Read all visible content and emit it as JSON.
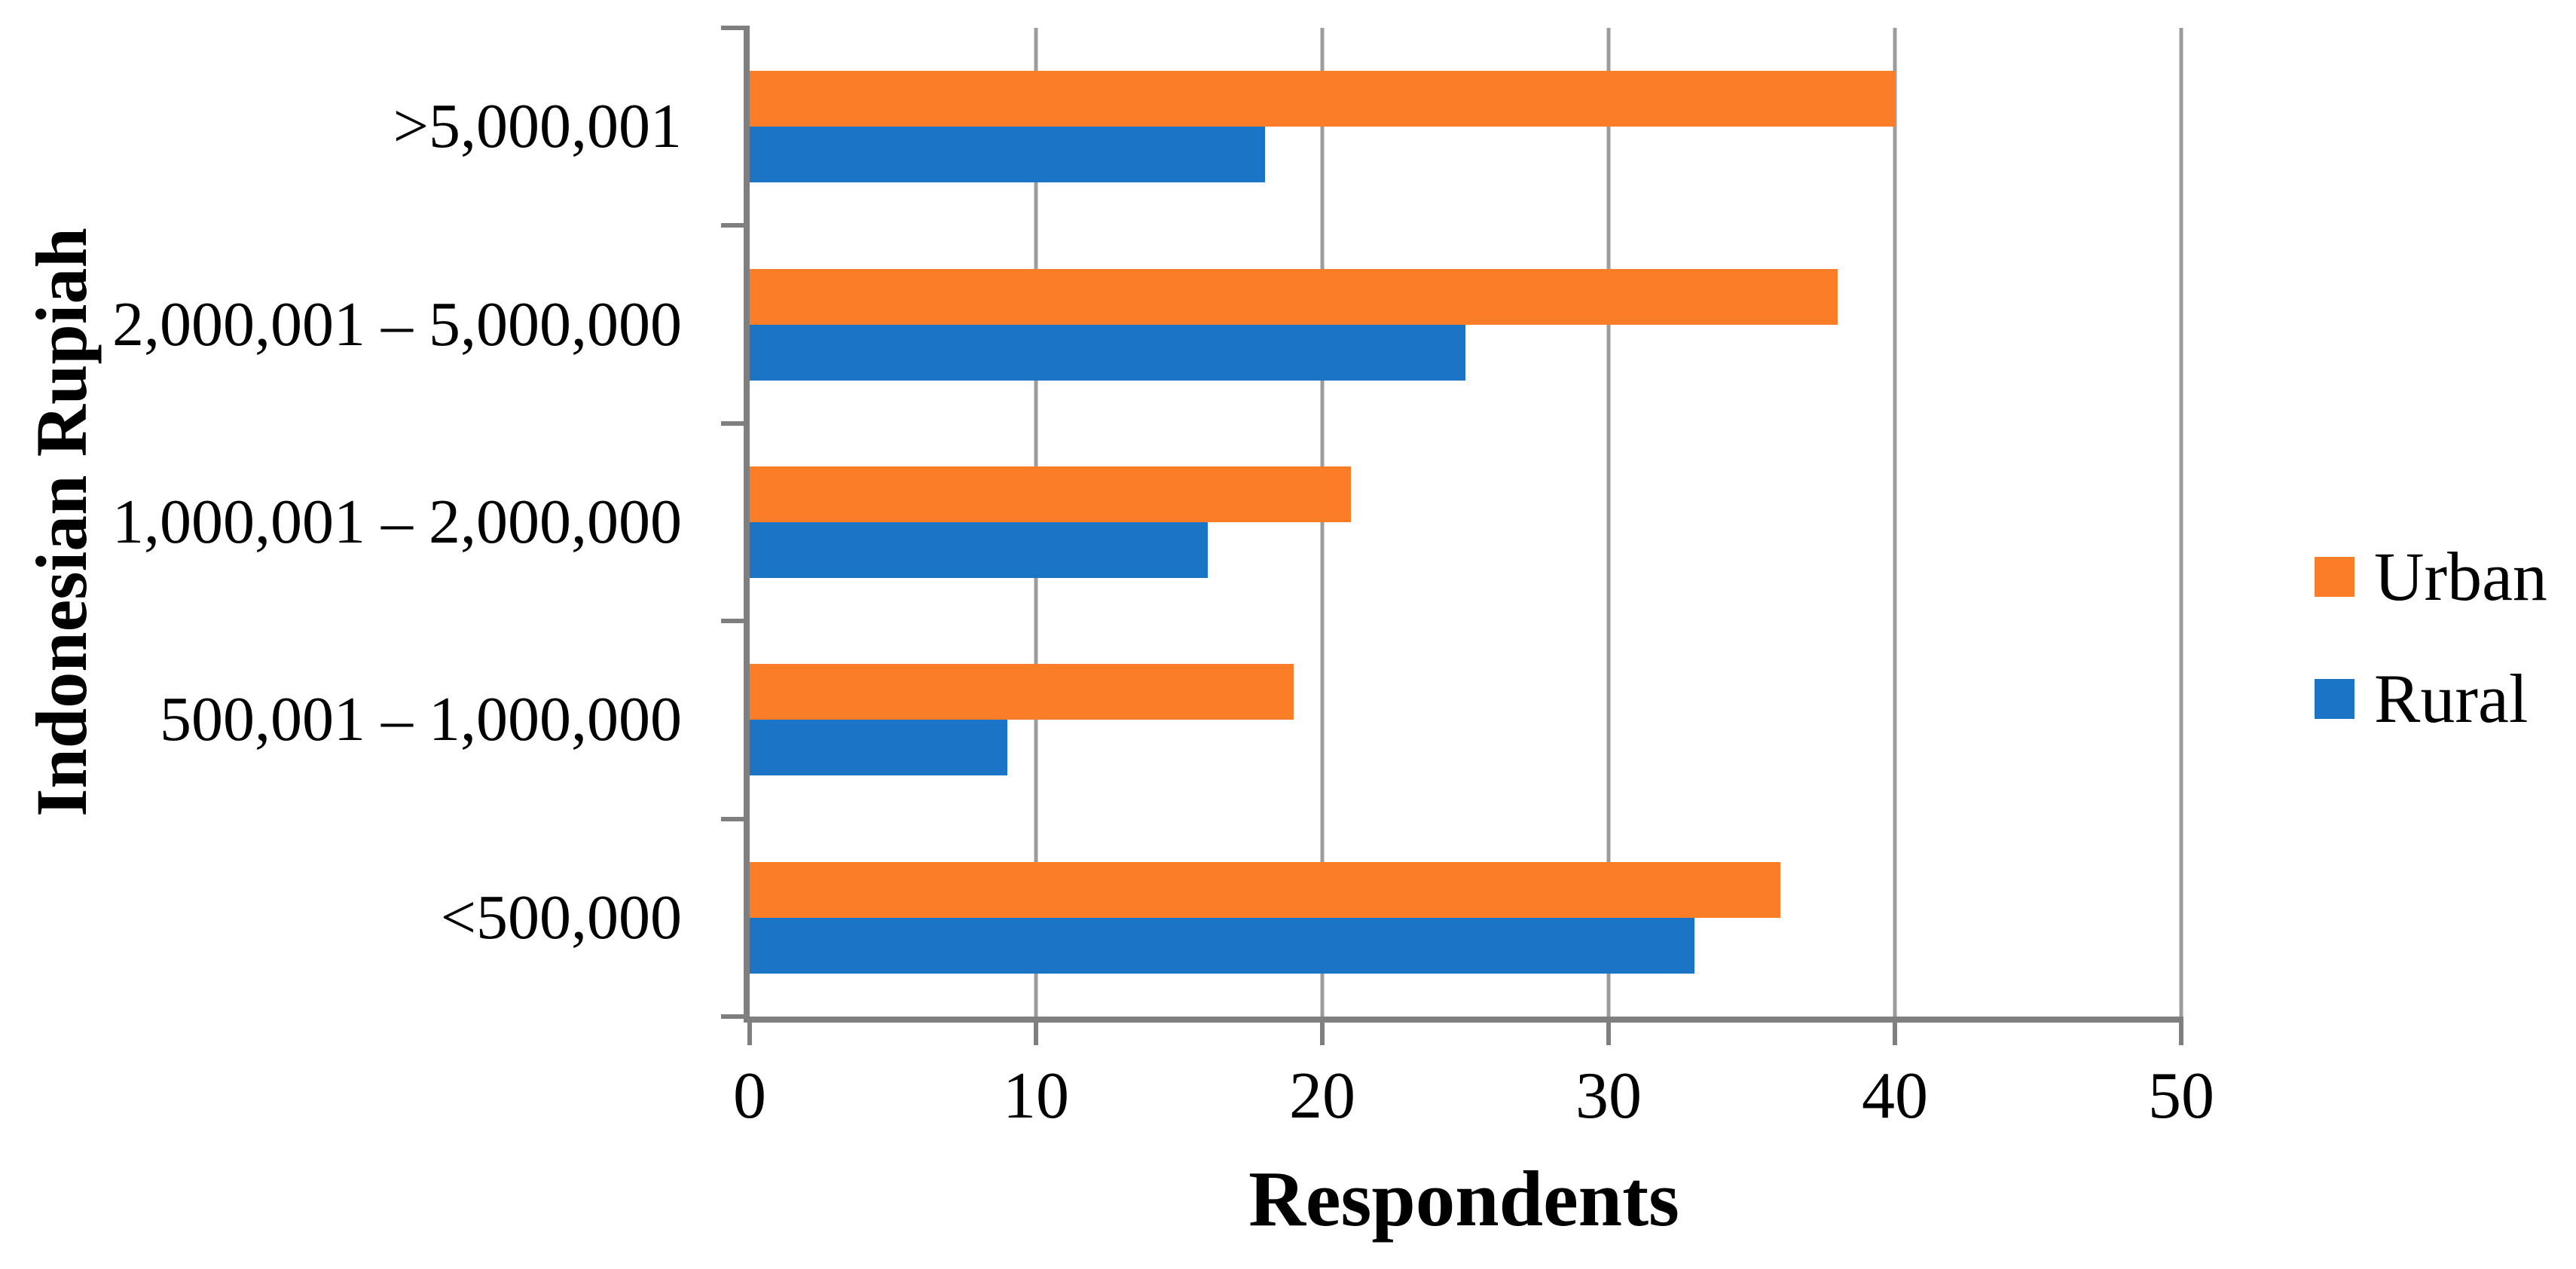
{
  "chart_data": {
    "type": "bar",
    "orientation": "horizontal",
    "title": "",
    "xlabel": "Respondents",
    "ylabel": "Indonesian Rupiah",
    "categories": [
      ">5,000,001",
      "2,000,001 – 5,000,000",
      "1,000,001 – 2,000,000",
      "500,001 – 1,000,000",
      "<500,000"
    ],
    "series": [
      {
        "name": "Urban",
        "color": "#FB7D27",
        "values": [
          40,
          38,
          21,
          19,
          36
        ]
      },
      {
        "name": "Rural",
        "color": "#1B74C5",
        "values": [
          18,
          25,
          16,
          9,
          33
        ]
      }
    ],
    "x_ticks": [
      0,
      10,
      20,
      30,
      40,
      50
    ],
    "xlim": [
      0,
      50
    ],
    "grid": true,
    "legend_position": "right",
    "legend_entries": [
      "Urban",
      "Rural"
    ],
    "axis_color": "#7F7F7F",
    "gridline_color": "#9C9C9C",
    "text_color": "#000000",
    "background_color": "#FFFFFF"
  }
}
